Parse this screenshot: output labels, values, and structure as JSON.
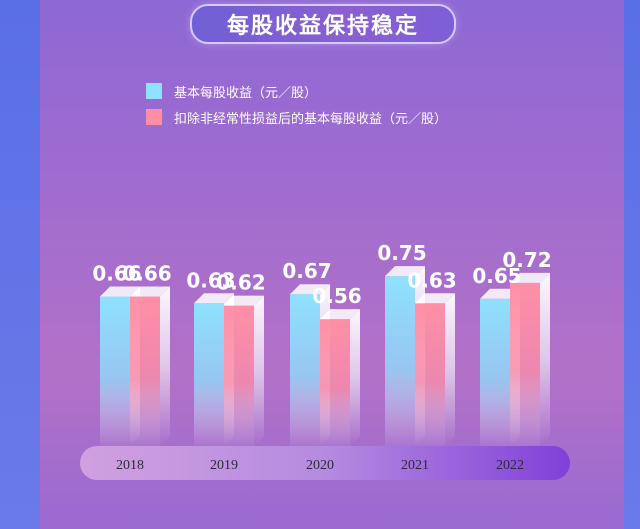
{
  "title": "每股收益保持稳定",
  "chart_data": {
    "type": "bar",
    "categories": [
      "2018",
      "2019",
      "2020",
      "2021",
      "2022"
    ],
    "series": [
      {
        "name": "基本每股收益（元／股）",
        "values": [
          0.66,
          0.63,
          0.67,
          0.75,
          0.65
        ],
        "color": "#8fe1ff"
      },
      {
        "name": "扣除非经常性损益后的基本每股收益（元／股）",
        "values": [
          0.66,
          0.62,
          0.56,
          0.63,
          0.72
        ],
        "color": "#ff8fa6"
      }
    ],
    "labels": [
      [
        "0.66",
        "0.63",
        "0.67",
        "0.75",
        "0.65"
      ],
      [
        "0.66",
        "0.62",
        "0.56",
        "0.63",
        "0.72"
      ]
    ],
    "ylim": [
      0,
      0.9
    ]
  }
}
